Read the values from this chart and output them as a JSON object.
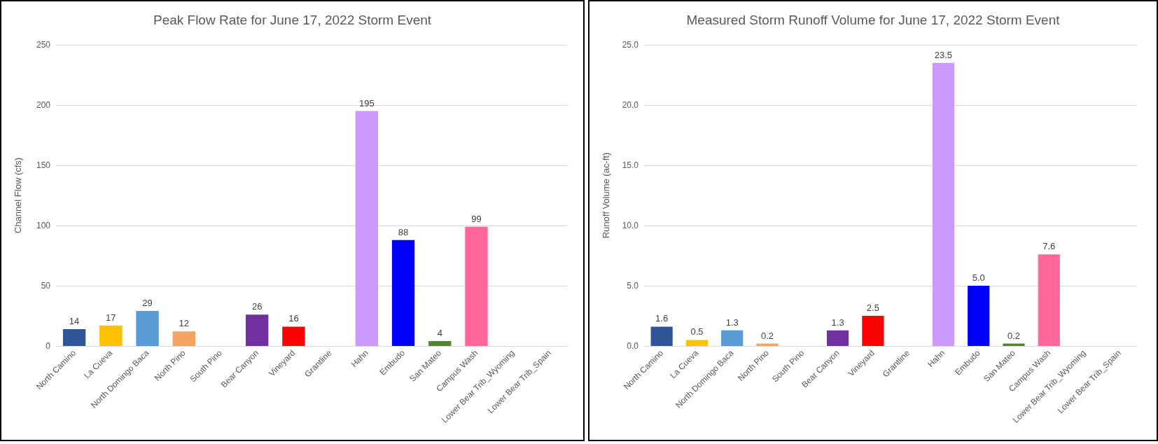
{
  "chart_data": [
    {
      "type": "bar",
      "title": "Peak Flow Rate for June 17, 2022 Storm Event",
      "ylabel": "Channel Flow (cfs)",
      "categories": [
        "North Camino",
        "La Cueva",
        "North Domingo Baca",
        "North Pino",
        "South Pino",
        "Bear Canyon",
        "Vineyard",
        "Grantline",
        "Hahn",
        "Embudo",
        "San Mateo",
        "Campus Wash",
        "Lower Bear Trib_Wyoming",
        "Lower Bear Trib_Spain"
      ],
      "values": [
        14,
        17,
        29,
        12,
        null,
        26,
        16,
        null,
        195,
        88,
        4,
        99,
        null,
        null
      ],
      "colors": [
        "#2f5597",
        "#ffc000",
        "#5b9bd5",
        "#f4a460",
        "#a5a5a5",
        "#7030a0",
        "#ff0000",
        "#a5a5a5",
        "#cc99ff",
        "#0000ff",
        "#548235",
        "#ff6699",
        "#a5a5a5",
        "#a5a5a5"
      ],
      "ylim": [
        0,
        250
      ],
      "yticks": [
        0,
        50,
        100,
        150,
        200,
        250
      ],
      "grid": "y",
      "data_labels": true
    },
    {
      "type": "bar",
      "title": "Measured Storm Runoff Volume for June 17, 2022 Storm Event",
      "ylabel": "Runoff Volume (ac-ft)",
      "categories": [
        "North Camino",
        "La Cueva",
        "North Domingo Baca",
        "North Pino",
        "South Pino",
        "Bear Canyon",
        "Vineyard",
        "Grantline",
        "Hahn",
        "Embudo",
        "San Mateo",
        "Campus Wash",
        "Lower Bear Trib_Wyoming",
        "Lower Bear Trib_Spain"
      ],
      "values": [
        1.6,
        0.5,
        1.3,
        0.2,
        null,
        1.3,
        2.5,
        null,
        23.5,
        5.0,
        0.2,
        7.6,
        null,
        null
      ],
      "value_labels": [
        "1.6",
        "0.5",
        "1.3",
        "0.2",
        null,
        "1.3",
        "2.5",
        null,
        "23.5",
        "5.0",
        "0.2",
        "7.6",
        null,
        null
      ],
      "colors": [
        "#2f5597",
        "#ffc000",
        "#5b9bd5",
        "#f4a460",
        "#a5a5a5",
        "#7030a0",
        "#ff0000",
        "#a5a5a5",
        "#cc99ff",
        "#0000ff",
        "#548235",
        "#ff6699",
        "#a5a5a5",
        "#a5a5a5"
      ],
      "ylim": [
        0,
        25
      ],
      "yticks": [
        {
          "value": 0,
          "label": "0.0"
        },
        {
          "value": 5,
          "label": "5.0"
        },
        {
          "value": 10,
          "label": "10.0"
        },
        {
          "value": 15,
          "label": "15.0"
        },
        {
          "value": 20,
          "label": "20.0"
        },
        {
          "value": 25,
          "label": "25.0"
        }
      ],
      "grid": "y"
    }
  ]
}
